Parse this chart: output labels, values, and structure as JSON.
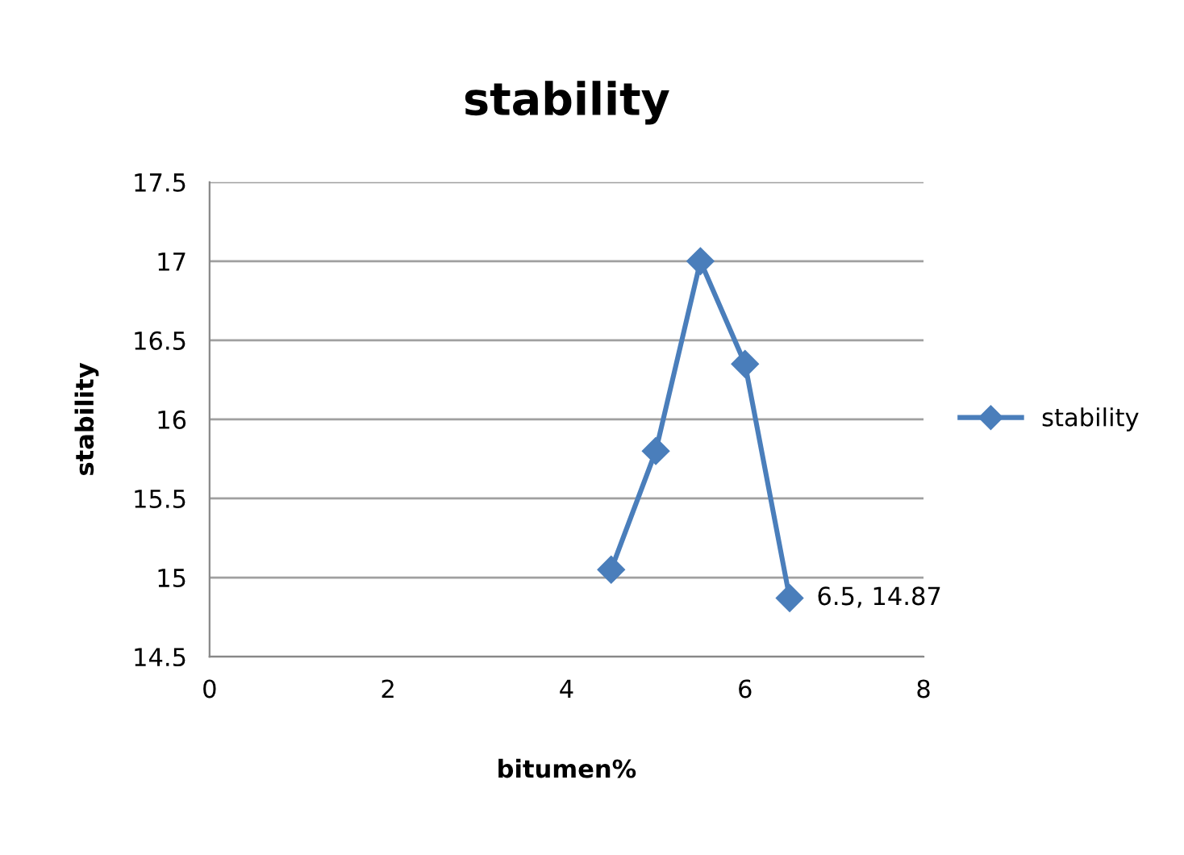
{
  "chart_data": {
    "type": "line",
    "title": "stability",
    "xlabel": "bitumen%",
    "ylabel": "stability",
    "x": [
      4.5,
      5,
      5.5,
      6,
      6.5
    ],
    "series": [
      {
        "name": "stability",
        "color": "#4a7ebb",
        "values": [
          15.05,
          15.8,
          17.0,
          16.35,
          14.87
        ]
      }
    ],
    "xlim": [
      0,
      8
    ],
    "xticks": [
      0,
      2,
      4,
      6,
      8
    ],
    "ylim": [
      14.5,
      17.5
    ],
    "yticks": [
      14.5,
      15,
      15.5,
      16,
      16.5,
      17,
      17.5
    ],
    "grid": "y",
    "legend": "right",
    "marker": "diamond",
    "line_style": "solid",
    "annotations": [
      {
        "text": "6.5, 14.87",
        "x": 6.5,
        "y": 14.87
      }
    ]
  }
}
